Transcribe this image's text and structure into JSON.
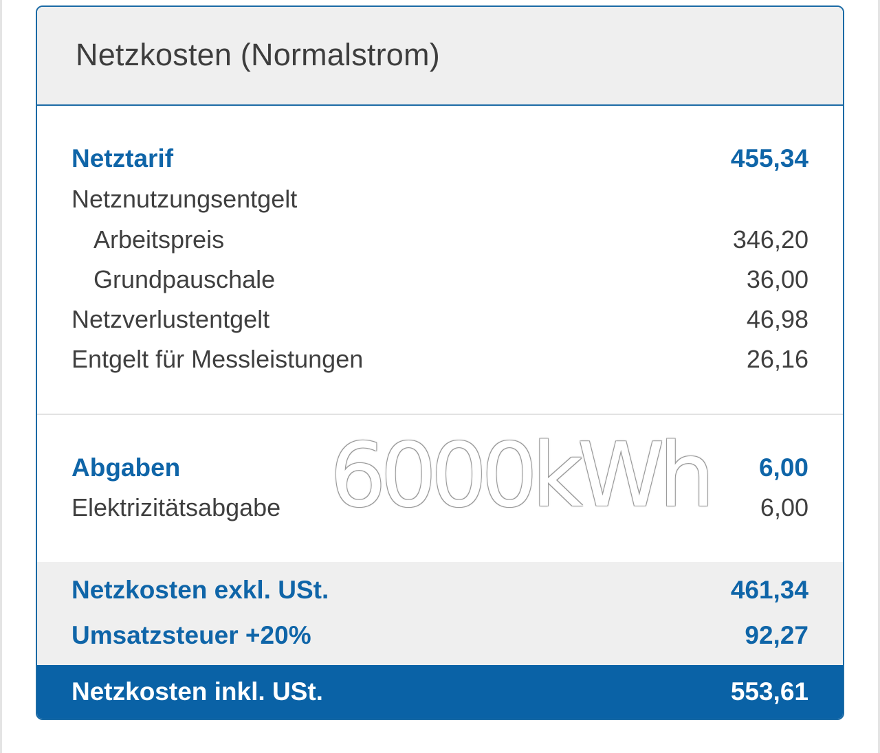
{
  "card": {
    "title": "Netzkosten (Normalstrom)"
  },
  "netztarif": {
    "label": "Netztarif",
    "value": "455,34",
    "items": [
      {
        "label": "Netznutzungsentgelt",
        "value": ""
      },
      {
        "label": "Arbeitspreis",
        "value": "346,20"
      },
      {
        "label": "Grundpauschale",
        "value": "36,00"
      },
      {
        "label": "Netzverlustentgelt",
        "value": "46,98"
      },
      {
        "label": "Entgelt für Messleistungen",
        "value": "26,16"
      }
    ]
  },
  "abgaben": {
    "label": "Abgaben",
    "value": "6,00",
    "items": [
      {
        "label": "Elektrizitätsabgabe",
        "value": "6,00"
      }
    ]
  },
  "summary": {
    "exkl": {
      "label": "Netzkosten exkl. USt.",
      "value": "461,34"
    },
    "ust": {
      "label": "Umsatzsteuer +20%",
      "value": "92,27"
    },
    "inkl": {
      "label": "Netzkosten inkl. USt.",
      "value": "553,61"
    }
  },
  "watermark": "6000kWh",
  "colors": {
    "accent": "#0f65a8",
    "total_bg": "#0a62a6",
    "header_bg": "#efefef",
    "text": "#3f3f3f"
  }
}
